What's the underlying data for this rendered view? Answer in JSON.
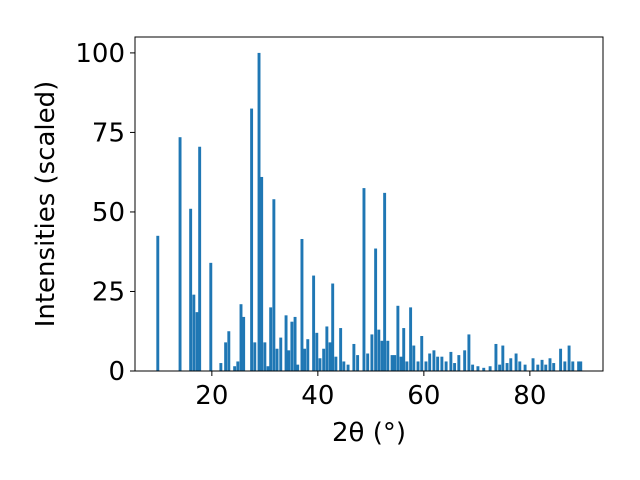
{
  "chart_data": {
    "type": "bar",
    "xlabel": "2θ (°)",
    "ylabel": "Intensities (scaled)",
    "color": "#1f77b4",
    "x": [
      9.8,
      14.0,
      16.0,
      16.6,
      17.2,
      17.7,
      19.8,
      21.7,
      22.6,
      23.2,
      24.3,
      24.9,
      25.5,
      26.0,
      27.5,
      28.1,
      28.9,
      29.4,
      30.0,
      30.6,
      31.1,
      31.7,
      32.3,
      33.0,
      34.0,
      34.5,
      35.1,
      35.7,
      36.2,
      37.0,
      37.5,
      38.1,
      39.2,
      39.8,
      40.4,
      41.1,
      41.7,
      42.3,
      42.8,
      43.4,
      44.3,
      44.9,
      45.7,
      46.8,
      47.5,
      48.7,
      49.4,
      50.2,
      50.9,
      51.5,
      52.1,
      52.6,
      53.2,
      54.0,
      54.5,
      55.1,
      55.7,
      56.2,
      56.8,
      57.5,
      58.1,
      58.9,
      59.6,
      60.4,
      61.1,
      61.9,
      62.6,
      63.4,
      64.2,
      65.1,
      65.8,
      66.6,
      67.7,
      68.5,
      69.2,
      70.2,
      71.3,
      72.5,
      73.6,
      74.3,
      74.9,
      75.7,
      76.4,
      77.4,
      78.1,
      79.1,
      80.6,
      81.5,
      82.3,
      83.0,
      83.8,
      84.5,
      85.8,
      86.6,
      87.4,
      88.1,
      89.2,
      89.6
    ],
    "values": [
      42.5,
      73.5,
      51,
      24,
      18.5,
      70.5,
      34,
      2.5,
      9,
      12.5,
      1.5,
      3,
      21,
      17,
      82.5,
      9,
      100,
      61,
      9,
      1.5,
      20,
      54,
      7,
      10.5,
      17.5,
      6.5,
      15.5,
      17,
      2,
      41.5,
      7,
      10,
      30,
      12,
      4,
      7,
      14,
      9,
      27.5,
      4.5,
      13.5,
      3,
      2,
      8.5,
      5,
      57.5,
      5.5,
      11.5,
      38.5,
      13,
      9.5,
      56,
      9.5,
      5,
      5,
      20.5,
      4.5,
      13.5,
      3,
      20,
      8,
      3,
      11,
      3,
      5.5,
      6.5,
      4.5,
      4.5,
      3,
      6,
      2.5,
      5,
      6.5,
      11.5,
      2,
      1.5,
      1,
      1.5,
      8.5,
      2,
      8,
      2.5,
      4,
      5.5,
      3,
      2,
      4,
      2,
      3.5,
      2,
      4,
      2.5,
      7,
      3,
      8,
      3,
      3,
      3
    ],
    "xlim": [
      5.5,
      93.8
    ],
    "ylim": [
      0,
      105
    ],
    "xticks": [
      20,
      40,
      60,
      80
    ],
    "yticks": [
      0,
      25,
      50,
      75,
      100
    ]
  }
}
